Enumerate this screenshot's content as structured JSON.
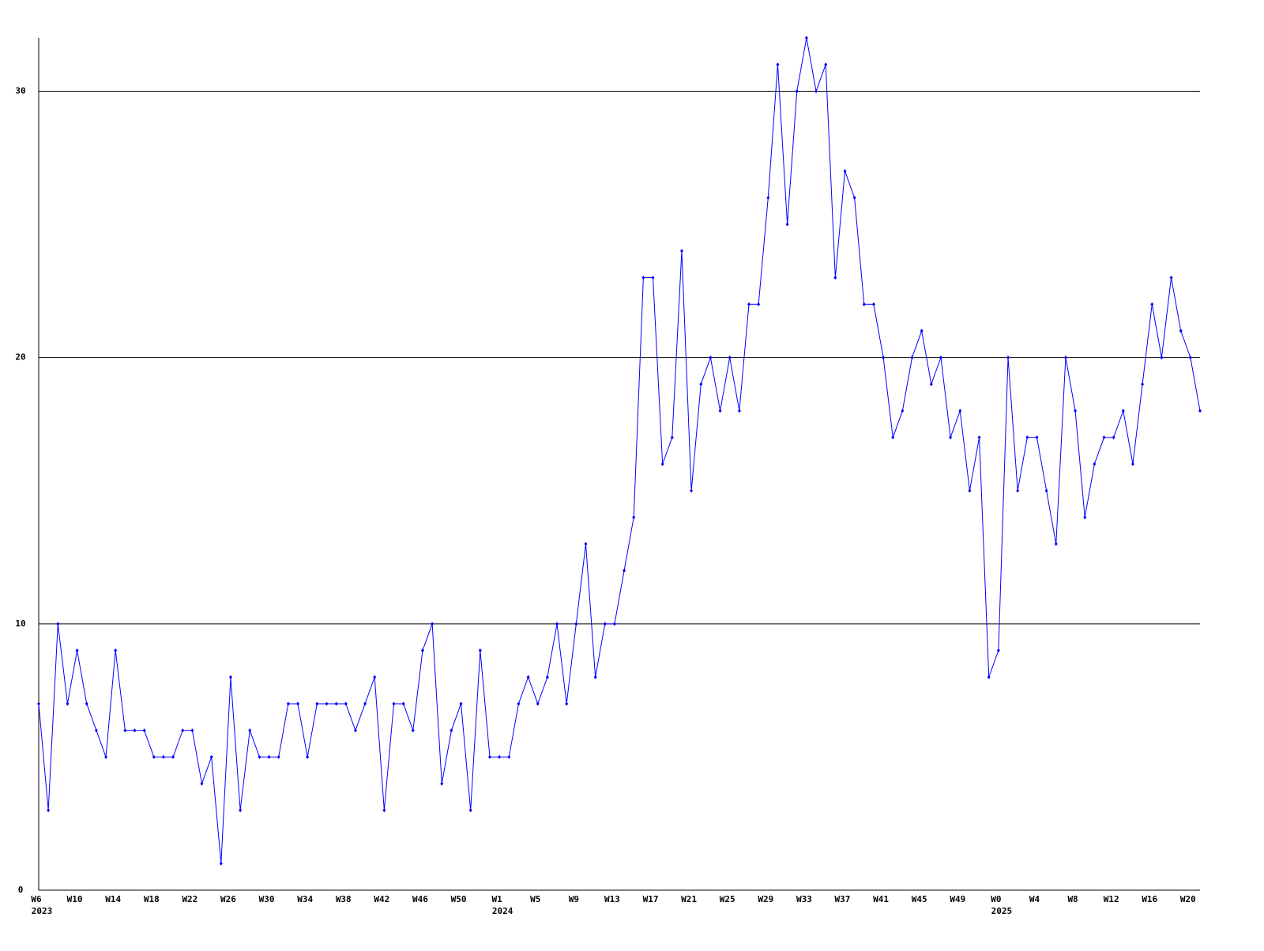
{
  "chart_data": {
    "type": "line",
    "categories": [
      "W6",
      null,
      null,
      null,
      "W10",
      null,
      null,
      null,
      "W14",
      null,
      null,
      null,
      "W18",
      null,
      null,
      null,
      "W22",
      null,
      null,
      null,
      "W26",
      null,
      null,
      null,
      "W30",
      null,
      null,
      null,
      "W34",
      null,
      null,
      null,
      "W38",
      null,
      null,
      null,
      "W42",
      null,
      null,
      null,
      "W46",
      null,
      null,
      null,
      "W50",
      null,
      null,
      null,
      "W1",
      null,
      null,
      null,
      "W5",
      null,
      null,
      null,
      "W9",
      null,
      null,
      null,
      "W13",
      null,
      null,
      null,
      "W17",
      null,
      null,
      null,
      "W21",
      null,
      null,
      null,
      "W25",
      null,
      null,
      null,
      "W29",
      null,
      null,
      null,
      "W33",
      null,
      null,
      null,
      "W37",
      null,
      null,
      null,
      "W41",
      null,
      null,
      null,
      "W45",
      null,
      null,
      null,
      "W49",
      null,
      null,
      null,
      "W0",
      null,
      null,
      null,
      "W4",
      null,
      null,
      null,
      "W8",
      null,
      null,
      null,
      "W12",
      null,
      null,
      null,
      "W16",
      null,
      null,
      null,
      "W20",
      null
    ],
    "years": [
      "2023",
      null,
      null,
      null,
      null,
      null,
      null,
      null,
      null,
      null,
      null,
      null,
      null,
      null,
      null,
      null,
      null,
      null,
      null,
      null,
      null,
      null,
      null,
      null,
      null,
      null,
      null,
      null,
      null,
      null,
      null,
      null,
      null,
      null,
      null,
      null,
      null,
      null,
      null,
      null,
      null,
      null,
      null,
      null,
      null,
      null,
      null,
      null,
      "2024",
      null,
      null,
      null,
      null,
      null,
      null,
      null,
      null,
      null,
      null,
      null,
      null,
      null,
      null,
      null,
      null,
      null,
      null,
      null,
      null,
      null,
      null,
      null,
      null,
      null,
      null,
      null,
      null,
      null,
      null,
      null,
      null,
      null,
      null,
      null,
      null,
      null,
      null,
      null,
      null,
      null,
      null,
      null,
      null,
      null,
      null,
      null,
      null,
      null,
      null,
      null,
      "2025",
      null,
      null,
      null,
      null,
      null,
      null,
      null,
      null,
      null,
      null,
      null,
      null,
      null,
      null,
      null,
      null,
      null,
      null,
      null,
      null,
      null
    ],
    "values": [
      7,
      3,
      10,
      7,
      9,
      7,
      6,
      5,
      9,
      6,
      6,
      6,
      5,
      5,
      5,
      6,
      6,
      4,
      5,
      1,
      8,
      3,
      6,
      5,
      5,
      5,
      7,
      7,
      5,
      7,
      7,
      7,
      7,
      6,
      7,
      8,
      3,
      7,
      7,
      6,
      9,
      10,
      4,
      6,
      7,
      3,
      9,
      5,
      5,
      5,
      7,
      8,
      7,
      8,
      10,
      7,
      10,
      13,
      8,
      10,
      10,
      12,
      14,
      23,
      23,
      16,
      17,
      24,
      15,
      19,
      20,
      18,
      20,
      18,
      22,
      22,
      26,
      31,
      25,
      30,
      32,
      30,
      31,
      23,
      27,
      26,
      22,
      22,
      20,
      17,
      18,
      20,
      21,
      19,
      20,
      17,
      18,
      15,
      17,
      8,
      9,
      20,
      15,
      17,
      17,
      15,
      13,
      20,
      18,
      14,
      16,
      17,
      17,
      18,
      16,
      19,
      22,
      20,
      23,
      21,
      20,
      18
    ],
    "color": "#0000ff",
    "ylim": [
      0,
      32
    ],
    "yticks": [
      0,
      10,
      20,
      30
    ],
    "grid": true
  }
}
